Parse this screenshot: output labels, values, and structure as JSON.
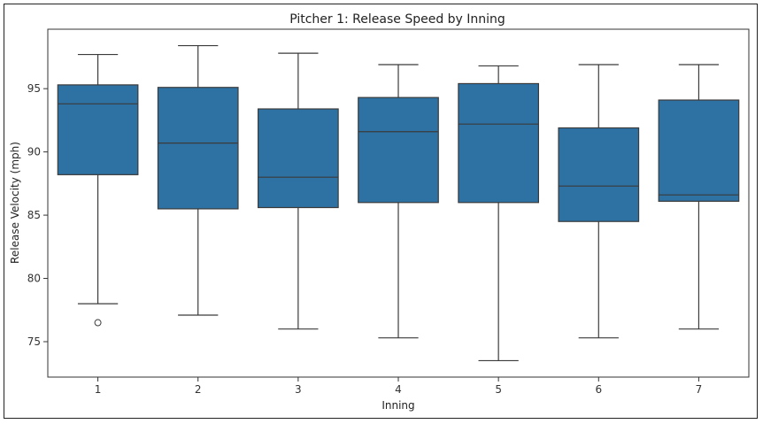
{
  "chart_data": {
    "type": "box",
    "title": "Pitcher 1: Release Speed by Inning",
    "xlabel": "Inning",
    "ylabel": "Release Velocity (mph)",
    "categories": [
      "1",
      "2",
      "3",
      "4",
      "5",
      "6",
      "7"
    ],
    "yticks": [
      "75",
      "80",
      "85",
      "90",
      "95"
    ],
    "ylim": [
      72.2,
      99.7
    ],
    "box_color": "#2e71a3",
    "line_color": "#3b3b3b",
    "grid": false,
    "legend": "none",
    "boxes": [
      {
        "min": 78.0,
        "q1": 88.2,
        "median": 93.8,
        "q3": 95.3,
        "max": 97.7,
        "outliers": [
          76.5
        ]
      },
      {
        "min": 77.1,
        "q1": 85.5,
        "median": 90.7,
        "q3": 95.1,
        "max": 98.4,
        "outliers": []
      },
      {
        "min": 76.0,
        "q1": 85.6,
        "median": 88.0,
        "q3": 93.4,
        "max": 97.8,
        "outliers": []
      },
      {
        "min": 75.3,
        "q1": 86.0,
        "median": 91.6,
        "q3": 94.3,
        "max": 96.9,
        "outliers": []
      },
      {
        "min": 73.5,
        "q1": 86.0,
        "median": 92.2,
        "q3": 95.4,
        "max": 96.8,
        "outliers": []
      },
      {
        "min": 75.3,
        "q1": 84.5,
        "median": 87.3,
        "q3": 91.9,
        "max": 96.9,
        "outliers": []
      },
      {
        "min": 76.0,
        "q1": 86.1,
        "median": 86.6,
        "q3": 94.1,
        "max": 96.9,
        "outliers": []
      }
    ]
  }
}
